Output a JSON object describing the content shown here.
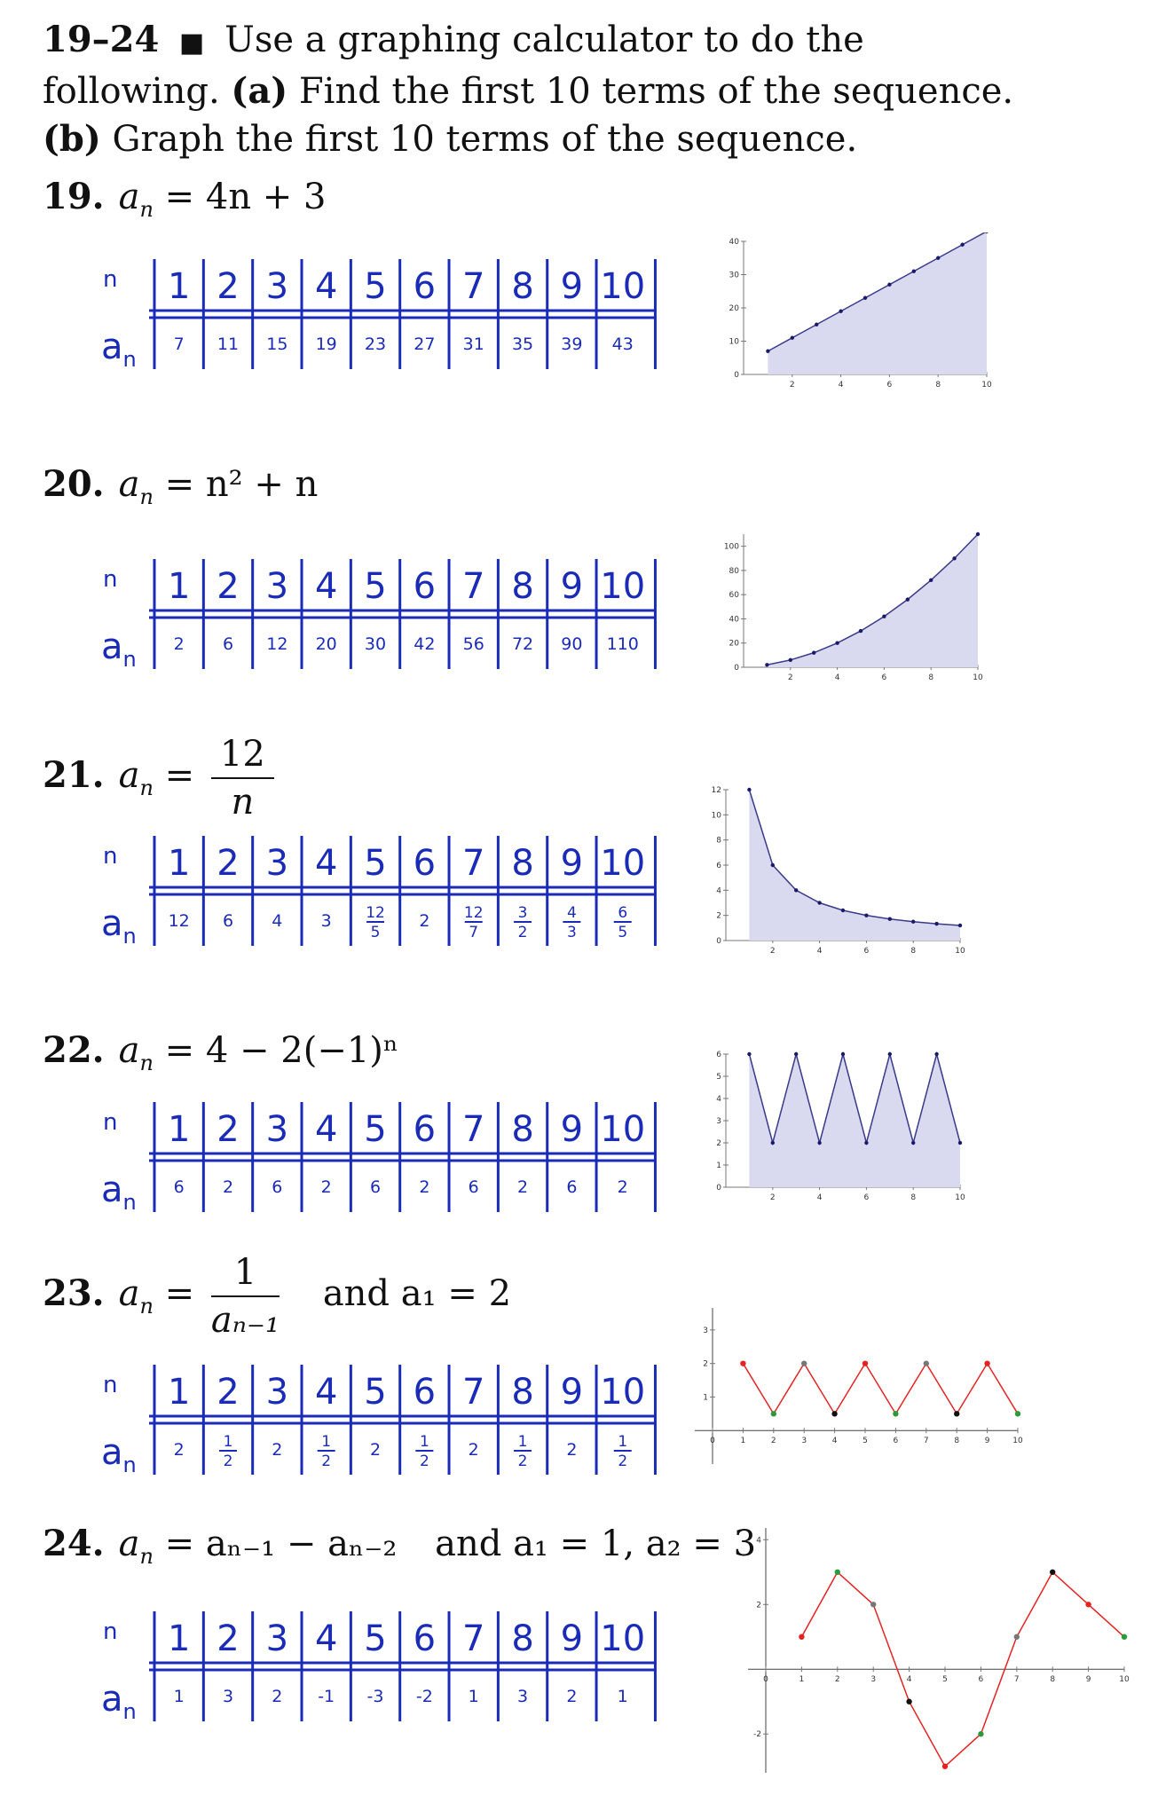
{
  "intro": {
    "range": "19–24",
    "square": "■",
    "text1": "Use a graphing calculator to do the following.",
    "part_a_label": "(a)",
    "part_a_text": "Find the first 10 terms of the sequence.",
    "part_b_label": "(b)",
    "part_b_text": "Graph the first 10 terms of the sequence."
  },
  "table_labels": {
    "n": "n",
    "a": "a",
    "a_sub": "n"
  },
  "n_values": [
    "1",
    "2",
    "3",
    "4",
    "5",
    "6",
    "7",
    "8",
    "9",
    "10"
  ],
  "problems": [
    {
      "number": "19.",
      "formula": "= 4n + 3",
      "terms": [
        "7",
        "11",
        "15",
        "19",
        "23",
        "27",
        "31",
        "35",
        "39",
        "43"
      ]
    },
    {
      "number": "20.",
      "formula": "= n² + n",
      "terms": [
        "2",
        "6",
        "12",
        "20",
        "30",
        "42",
        "56",
        "72",
        "90",
        "110"
      ]
    },
    {
      "number": "21.",
      "formula_num": "12",
      "formula_den": "n",
      "terms": [
        "12",
        "6",
        "4",
        "3",
        "12/5",
        "2",
        "12/7",
        "3/2",
        "4/3",
        "6/5"
      ]
    },
    {
      "number": "22.",
      "formula": "= 4 − 2(−1)ⁿ",
      "terms": [
        "6",
        "2",
        "6",
        "2",
        "6",
        "2",
        "6",
        "2",
        "6",
        "2"
      ]
    },
    {
      "number": "23.",
      "formula_num": "1",
      "formula_den": "aₙ₋₁",
      "extra": "and   a₁ = 2",
      "terms": [
        "2",
        "1/2",
        "2",
        "1/2",
        "2",
        "1/2",
        "2",
        "1/2",
        "2",
        "1/2"
      ]
    },
    {
      "number": "24.",
      "formula": "= aₙ₋₁ − aₙ₋₂",
      "extra": "and   a₁ = 1, a₂ = 3",
      "terms": [
        "1",
        "3",
        "2",
        "-1",
        "-3",
        "-2",
        "1",
        "3",
        "2",
        "1"
      ]
    }
  ],
  "colors": {
    "ink": "#1a2bb8",
    "fill": "#d9d9ef",
    "fill_line": "#3a3a8a",
    "red": "#e52222"
  },
  "chart_data": [
    {
      "type": "area",
      "x": [
        1,
        2,
        3,
        4,
        5,
        6,
        7,
        8,
        9,
        10
      ],
      "y": [
        7,
        11,
        15,
        19,
        23,
        27,
        31,
        35,
        39,
        43
      ],
      "xlim": [
        0,
        10
      ],
      "ylim": [
        0,
        40
      ],
      "xticks": [
        2,
        4,
        6,
        8,
        10
      ],
      "yticks": [
        0,
        10,
        20,
        30,
        40
      ]
    },
    {
      "type": "area",
      "x": [
        1,
        2,
        3,
        4,
        5,
        6,
        7,
        8,
        9,
        10
      ],
      "y": [
        2,
        6,
        12,
        20,
        30,
        42,
        56,
        72,
        90,
        110
      ],
      "xlim": [
        0,
        10
      ],
      "ylim": [
        0,
        110
      ],
      "xticks": [
        2,
        4,
        6,
        8,
        10
      ],
      "yticks": [
        0,
        20,
        40,
        60,
        80,
        100
      ]
    },
    {
      "type": "area",
      "x": [
        1,
        2,
        3,
        4,
        5,
        6,
        7,
        8,
        9,
        10
      ],
      "y": [
        12,
        6,
        4,
        3,
        2.4,
        2,
        1.714,
        1.5,
        1.333,
        1.2
      ],
      "xlim": [
        0,
        10
      ],
      "ylim": [
        0,
        12
      ],
      "xticks": [
        2,
        4,
        6,
        8,
        10
      ],
      "yticks": [
        0,
        2,
        4,
        6,
        8,
        10,
        12
      ]
    },
    {
      "type": "area",
      "x": [
        1,
        2,
        3,
        4,
        5,
        6,
        7,
        8,
        9,
        10
      ],
      "y": [
        6,
        2,
        6,
        2,
        6,
        2,
        6,
        2,
        6,
        2
      ],
      "xlim": [
        0,
        10
      ],
      "ylim": [
        0,
        6
      ],
      "xticks": [
        2,
        4,
        6,
        8,
        10
      ],
      "yticks": [
        0,
        1,
        2,
        3,
        4,
        5,
        6
      ]
    },
    {
      "type": "line",
      "x": [
        1,
        2,
        3,
        4,
        5,
        6,
        7,
        8,
        9,
        10
      ],
      "y": [
        2,
        0.5,
        2,
        0.5,
        2,
        0.5,
        2,
        0.5,
        2,
        0.5
      ],
      "xlim": [
        0,
        10
      ],
      "ylim": [
        -1,
        3.5
      ],
      "xticks": [
        0,
        1,
        2,
        3,
        4,
        5,
        6,
        7,
        8,
        9,
        10
      ],
      "yticks": [
        1,
        2,
        3
      ]
    },
    {
      "type": "line",
      "x": [
        1,
        2,
        3,
        4,
        5,
        6,
        7,
        8,
        9,
        10
      ],
      "y": [
        1,
        3,
        2,
        -1,
        -3,
        -2,
        1,
        3,
        2,
        1
      ],
      "xlim": [
        0,
        10
      ],
      "ylim": [
        -3.2,
        4.2
      ],
      "xticks": [
        0,
        1,
        2,
        3,
        4,
        5,
        6,
        7,
        8,
        9,
        10
      ],
      "yticks": [
        -2,
        2,
        4
      ]
    }
  ]
}
